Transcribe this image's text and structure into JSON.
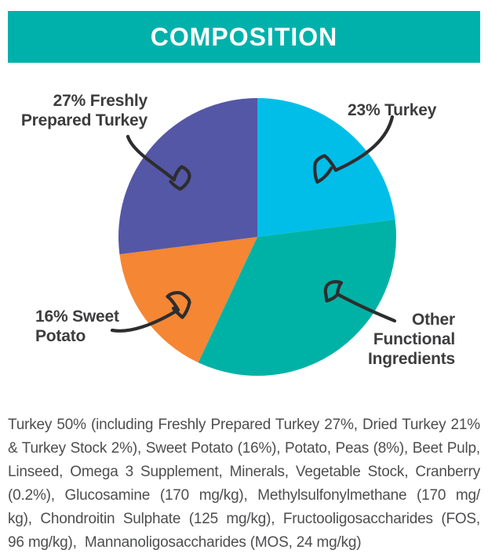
{
  "header": {
    "title": "COMPOSITION",
    "bg_color": "#00b1ab",
    "text_color": "#ffffff"
  },
  "chart_data": {
    "type": "pie",
    "title": "COMPOSITION",
    "start_angle_deg": 0,
    "direction": "clockwise",
    "slices": [
      {
        "label": "23% Turkey",
        "value": 23,
        "color": "#00bee8"
      },
      {
        "label": "Other Functional Ingredients",
        "value": 34,
        "color": "#00b2a5"
      },
      {
        "label": "16% Sweet Potato",
        "value": 16,
        "color": "#f58634"
      },
      {
        "label": "27% Freshly Prepared Turkey",
        "value": 27,
        "color": "#5457a5"
      }
    ]
  },
  "labels": {
    "fpt": {
      "lines": [
        "27% Freshly",
        "Prepared Turkey"
      ]
    },
    "turkey": {
      "lines": [
        "23% Turkey"
      ]
    },
    "sweet_potato": {
      "lines": [
        "16% Sweet",
        "Potato"
      ]
    },
    "other": {
      "lines": [
        "Other",
        "Functional",
        "Ingredients"
      ]
    }
  },
  "footnote": {
    "lines": [
      "Turkey 50% (including Freshly Prepared Turkey 27%, Dried Turkey 21%",
      "& Turkey Stock 2%), Sweet Potato (16%), Potato, Peas (8%), Beet Pulp,",
      "Linseed, Omega 3 Supplement, Minerals, Vegetable Stock, Cranberry",
      "(0.2%), Glucosamine (170 mg/kg), Methylsulfonylmethane (170 mg/",
      "kg), Chondroitin Sulphate (125 mg/kg), Fructooligosaccharides (FOS,",
      "96 mg/kg),  Mannanoligosaccharides (MOS, 24 mg/kg)"
    ]
  }
}
